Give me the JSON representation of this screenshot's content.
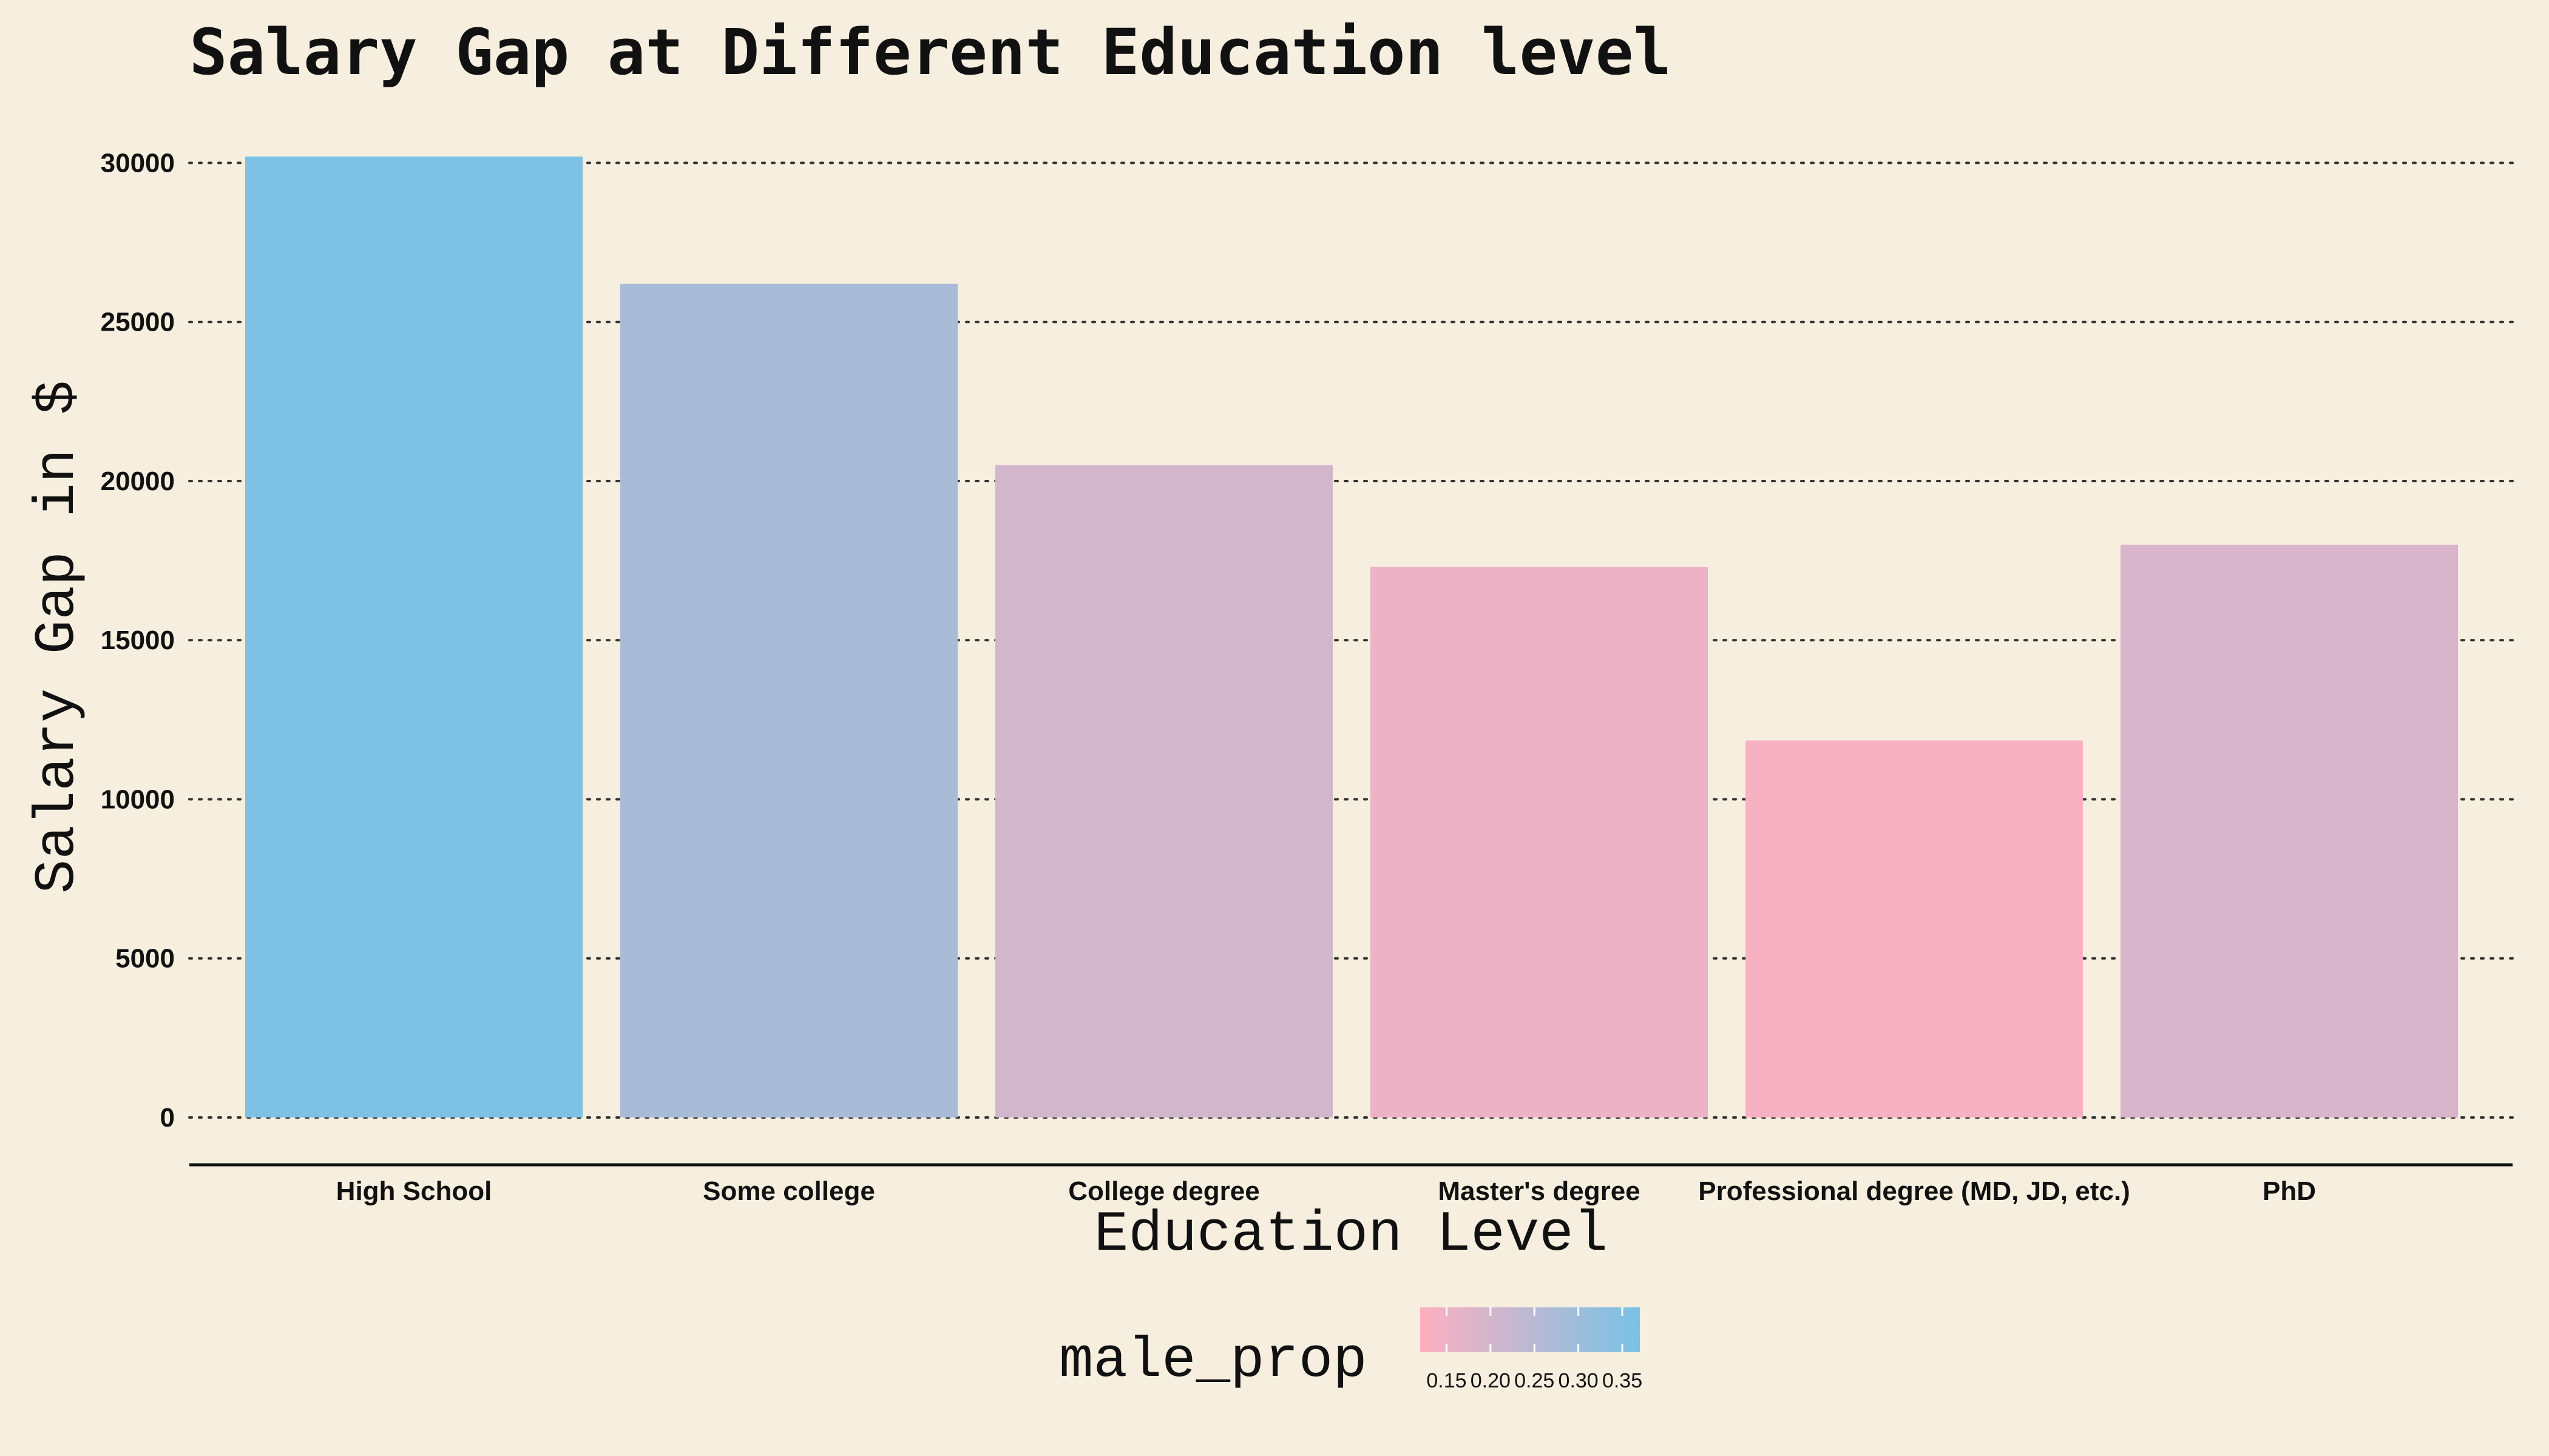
{
  "chart_data": {
    "type": "bar",
    "title": "Salary Gap at Different Education level",
    "xlabel": "Education Level",
    "ylabel": "Salary Gap in $",
    "categories": [
      "High School",
      "Some college",
      "College degree",
      "Master's degree",
      "Professional degree (MD, JD, etc.)",
      "PhD"
    ],
    "values": [
      30200,
      26200,
      20500,
      17300,
      11850,
      18000
    ],
    "male_prop": [
      0.36,
      0.28,
      0.2,
      0.15,
      0.13,
      0.19
    ],
    "ylim": [
      0,
      30200
    ],
    "yticks": [
      "0",
      "5000",
      "10000",
      "15000",
      "20000",
      "25000",
      "30000"
    ],
    "grid": "horizontal dotted",
    "legend": {
      "title": "male_prop",
      "placement": "bottom",
      "ticks": [
        "0.15",
        "0.20",
        "0.25",
        "0.30",
        "0.35"
      ],
      "tick_values": [
        0.15,
        0.2,
        0.25,
        0.3,
        0.35
      ],
      "range": [
        0.12,
        0.37
      ],
      "color_low": "#fdb0c0",
      "color_high": "#78c2e6"
    }
  }
}
